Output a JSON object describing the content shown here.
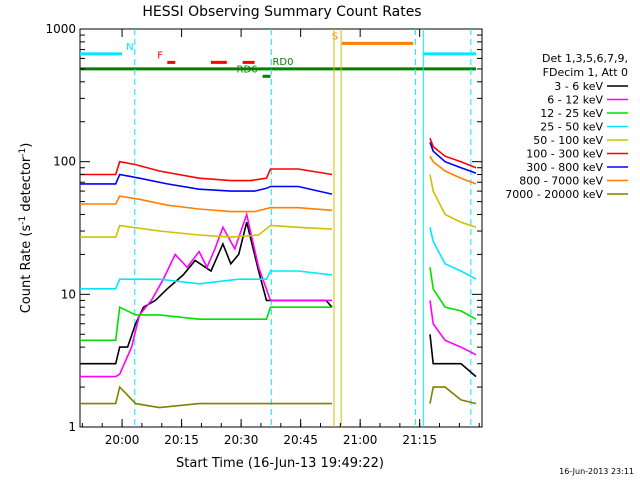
{
  "chart_data": {
    "type": "line",
    "title": "HESSI Observing Summary Count Rates",
    "xlabel": "Start Time (16-Jun-13 19:49:22)",
    "ylabel_main": "Count Rate (s",
    "ylabel_sup1": "-1",
    "ylabel_mid": " detector",
    "ylabel_sup2": "-1",
    "ylabel_end": ")",
    "yscale": "log",
    "ylim": [
      1,
      1000
    ],
    "xlim_minutes_after_start": [
      0,
      101.3
    ],
    "x_ticks": [
      {
        "label": "20:00",
        "minute": 10.6
      },
      {
        "label": "20:15",
        "minute": 25.6
      },
      {
        "label": "20:30",
        "minute": 40.6
      },
      {
        "label": "20:45",
        "minute": 55.6
      },
      {
        "label": "21:00",
        "minute": 70.6
      },
      {
        "label": "21:15",
        "minute": 85.6
      }
    ],
    "y_ticks": [
      {
        "label": "1",
        "value": 1
      },
      {
        "label": "10",
        "value": 10
      },
      {
        "label": "100",
        "value": 100
      },
      {
        "label": "1000",
        "value": 1000
      }
    ],
    "legend_header": [
      "Det 1,3,5,6,7,9,",
      "FDecim 1, Att 0"
    ],
    "legend_placement": "right",
    "series": [
      {
        "name": "3 - 6 keV",
        "color": "#000000",
        "points": [
          [
            0,
            3
          ],
          [
            9,
            3
          ],
          [
            10,
            4
          ],
          [
            12,
            4
          ],
          [
            14,
            6
          ],
          [
            16,
            8
          ],
          [
            19,
            9
          ],
          [
            22,
            11
          ],
          [
            26,
            14
          ],
          [
            29,
            18
          ],
          [
            33,
            15
          ],
          [
            36,
            24
          ],
          [
            38,
            17
          ],
          [
            40,
            20
          ],
          [
            42,
            35
          ],
          [
            45,
            15
          ],
          [
            47,
            9
          ],
          [
            51,
            9
          ],
          [
            58,
            9
          ],
          [
            62,
            9
          ],
          [
            63.5,
            8
          ]
        ]
      },
      {
        "name": "6 - 12 keV",
        "color": "#ff00ff",
        "points": [
          [
            0,
            2.4
          ],
          [
            9,
            2.4
          ],
          [
            10,
            2.5
          ],
          [
            13,
            4
          ],
          [
            15,
            7
          ],
          [
            18,
            9
          ],
          [
            21,
            13
          ],
          [
            24,
            20
          ],
          [
            27,
            16
          ],
          [
            30,
            21
          ],
          [
            32,
            16
          ],
          [
            34,
            22
          ],
          [
            36,
            32
          ],
          [
            39,
            22
          ],
          [
            42,
            40
          ],
          [
            45,
            16
          ],
          [
            48,
            9
          ],
          [
            55,
            9
          ],
          [
            63.5,
            9
          ]
        ]
      },
      {
        "name": "12 - 25 keV",
        "color": "#00e000",
        "points": [
          [
            0,
            4.5
          ],
          [
            9,
            4.5
          ],
          [
            10,
            8
          ],
          [
            14,
            7
          ],
          [
            20,
            7
          ],
          [
            30,
            6.5
          ],
          [
            40,
            6.5
          ],
          [
            47,
            6.5
          ],
          [
            48,
            8
          ],
          [
            55,
            8
          ],
          [
            63.5,
            8
          ]
        ]
      },
      {
        "name": "25 - 50 keV",
        "color": "#00e8ff",
        "points": [
          [
            0,
            11
          ],
          [
            9,
            11
          ],
          [
            10,
            13
          ],
          [
            20,
            13
          ],
          [
            30,
            12
          ],
          [
            40,
            13
          ],
          [
            47,
            13
          ],
          [
            48,
            15
          ],
          [
            55,
            15
          ],
          [
            63.5,
            14
          ]
        ]
      },
      {
        "name": "50 - 100 keV",
        "color": "#d0c000",
        "points": [
          [
            0,
            27
          ],
          [
            9,
            27
          ],
          [
            10,
            33
          ],
          [
            20,
            30
          ],
          [
            30,
            28
          ],
          [
            38,
            27
          ],
          [
            45,
            28
          ],
          [
            48,
            33
          ],
          [
            55,
            32
          ],
          [
            63.5,
            31
          ]
        ]
      },
      {
        "name": "100 - 300 keV",
        "color": "#ff0000",
        "points": [
          [
            0,
            80
          ],
          [
            9,
            80
          ],
          [
            10,
            100
          ],
          [
            14,
            95
          ],
          [
            20,
            85
          ],
          [
            30,
            75
          ],
          [
            38,
            72
          ],
          [
            43,
            72
          ],
          [
            47,
            75
          ],
          [
            48,
            88
          ],
          [
            55,
            88
          ],
          [
            63.5,
            80
          ]
        ]
      },
      {
        "name": "300 - 800 keV",
        "color": "#0000ff",
        "points": [
          [
            0,
            68
          ],
          [
            9,
            68
          ],
          [
            10,
            80
          ],
          [
            15,
            75
          ],
          [
            22,
            68
          ],
          [
            30,
            62
          ],
          [
            38,
            60
          ],
          [
            44,
            60
          ],
          [
            47,
            63
          ],
          [
            48,
            65
          ],
          [
            55,
            65
          ],
          [
            63.5,
            57
          ]
        ]
      },
      {
        "name": "800 - 7000 keV",
        "color": "#ff7f00",
        "points": [
          [
            0,
            48
          ],
          [
            9,
            48
          ],
          [
            10,
            55
          ],
          [
            15,
            52
          ],
          [
            22,
            47
          ],
          [
            30,
            44
          ],
          [
            38,
            42
          ],
          [
            44,
            42
          ],
          [
            48,
            45
          ],
          [
            55,
            45
          ],
          [
            63.5,
            43
          ]
        ]
      },
      {
        "name": "7000 - 20000 keV",
        "color": "#808000",
        "points": [
          [
            0,
            1.5
          ],
          [
            9,
            1.5
          ],
          [
            10,
            2
          ],
          [
            14,
            1.5
          ],
          [
            20,
            1.4
          ],
          [
            30,
            1.5
          ],
          [
            40,
            1.5
          ],
          [
            50,
            1.5
          ],
          [
            63.5,
            1.5
          ]
        ]
      }
    ],
    "later_segment": {
      "comment_free": true,
      "series_points": [
        [
          [
            88.2,
            5
          ],
          [
            89,
            3
          ],
          [
            92,
            3
          ],
          [
            96,
            3
          ],
          [
            99.8,
            2.4
          ]
        ],
        [
          [
            88.2,
            9
          ],
          [
            89,
            6
          ],
          [
            92,
            4.5
          ],
          [
            96,
            4
          ],
          [
            99.8,
            3.5
          ]
        ],
        [
          [
            88.2,
            16
          ],
          [
            89,
            11
          ],
          [
            92,
            8
          ],
          [
            96,
            7.5
          ],
          [
            99.8,
            6.5
          ]
        ],
        [
          [
            88.2,
            32
          ],
          [
            89,
            25
          ],
          [
            92,
            17
          ],
          [
            96,
            15
          ],
          [
            99.8,
            13
          ]
        ],
        [
          [
            88.2,
            80
          ],
          [
            89,
            60
          ],
          [
            92,
            40
          ],
          [
            96,
            35
          ],
          [
            99.8,
            32
          ]
        ],
        [
          [
            88.2,
            150
          ],
          [
            89,
            130
          ],
          [
            92,
            110
          ],
          [
            96,
            100
          ],
          [
            99.8,
            90
          ]
        ],
        [
          [
            88.2,
            140
          ],
          [
            89,
            120
          ],
          [
            92,
            100
          ],
          [
            96,
            90
          ],
          [
            99.8,
            82
          ]
        ],
        [
          [
            88.2,
            110
          ],
          [
            89,
            100
          ],
          [
            92,
            85
          ],
          [
            96,
            75
          ],
          [
            99.8,
            68
          ]
        ],
        [
          [
            88.2,
            1.5
          ],
          [
            89,
            2
          ],
          [
            92,
            2
          ],
          [
            96,
            1.6
          ],
          [
            99.8,
            1.5
          ]
        ]
      ]
    },
    "flags": [
      {
        "label": "N",
        "color": "#00e8ff",
        "value": 650,
        "segments": [
          [
            0,
            10.6
          ],
          [
            86.5,
            99.8
          ]
        ]
      },
      {
        "label": "F",
        "color": "#ff0000",
        "value": 560,
        "segments": [
          [
            22,
            24
          ],
          [
            33,
            37
          ],
          [
            41,
            44
          ]
        ]
      },
      {
        "label": "S",
        "color": "#ff7f00",
        "value": 780,
        "segments": [
          [
            66,
            84
          ]
        ]
      },
      {
        "label": "RD0",
        "color": "#008000",
        "value": 500,
        "segments": [
          [
            0,
            99.8
          ]
        ]
      },
      {
        "label": "RD6",
        "color": "#008000",
        "value": 440,
        "segments": [
          [
            46,
            48
          ]
        ]
      }
    ],
    "vlines": [
      {
        "minute": 13.8,
        "color": "#00e8ff",
        "dashed": true
      },
      {
        "minute": 48.2,
        "color": "#00e8ff",
        "dashed": true
      },
      {
        "minute": 64.0,
        "color": "#d0c000",
        "dashed": false
      },
      {
        "minute": 65.8,
        "color": "#d0c000",
        "dashed": false
      },
      {
        "minute": 84.5,
        "color": "#00e8ff",
        "dashed": true
      },
      {
        "minute": 86.5,
        "color": "#00e8ff",
        "dashed": false
      },
      {
        "minute": 98.5,
        "color": "#00e8ff",
        "dashed": true
      }
    ],
    "timestamp": "16-Jun-2013 23:11"
  }
}
